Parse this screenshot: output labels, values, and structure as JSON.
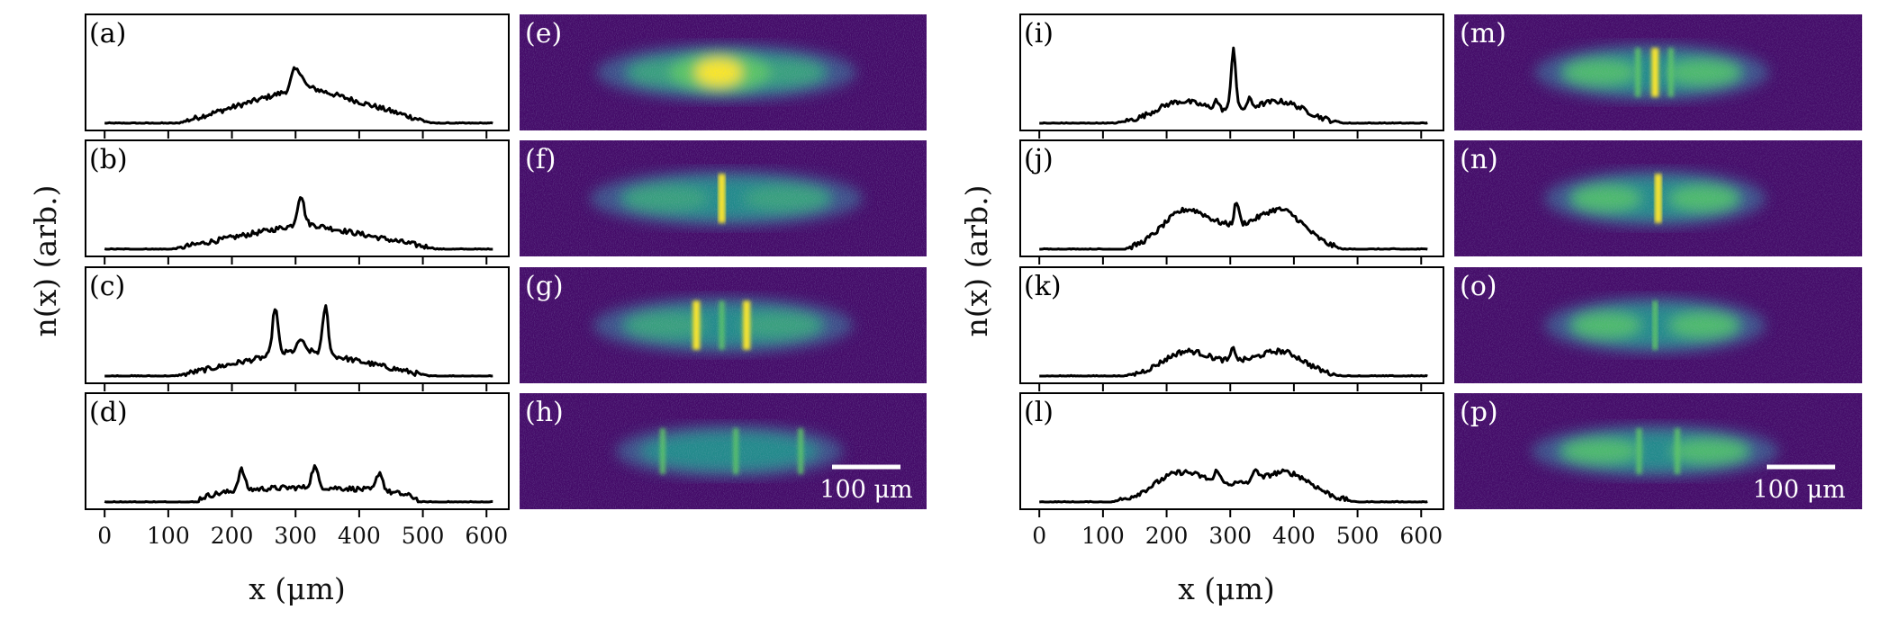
{
  "figure": {
    "ylabel": "n(x) (arb.)",
    "xlabel": "x (μm)",
    "scale_bar_label": "100 μm",
    "colors": {
      "trace": "#000000",
      "image_background": "#440a68",
      "image_low": "#3b528b",
      "image_mid": "#21918c",
      "image_high": "#5ec962",
      "image_peak": "#fde725"
    }
  },
  "chart_data": [
    {
      "type": "line",
      "group": "left",
      "xticks": [
        0,
        100,
        200,
        300,
        400,
        500,
        600
      ],
      "xlim": [
        -30,
        635
      ],
      "xlabel": "x (μm)",
      "ylabel": "n(x) (arb.)",
      "panels": [
        {
          "label": "(a)",
          "image_label": "(e)",
          "center": 315,
          "halfwidth": 200,
          "base_height": 0.36,
          "shape": "triangle",
          "peaks": [
            {
              "x": 298,
              "height": 0.18,
              "width": 7
            },
            {
              "x": 308,
              "height": 0.12,
              "width": 6
            }
          ],
          "image_blob": "central"
        },
        {
          "label": "(b)",
          "image_label": "(f)",
          "center": 315,
          "halfwidth": 210,
          "base_height": 0.25,
          "shape": "triangle",
          "peaks": [
            {
              "x": 308,
              "height": 0.28,
              "width": 7
            }
          ],
          "image_blob": "none"
        },
        {
          "label": "(c)",
          "image_label": "(g)",
          "center": 310,
          "halfwidth": 200,
          "base_height": 0.26,
          "shape": "triangle",
          "peaks": [
            {
              "x": 268,
              "height": 0.46,
              "width": 6
            },
            {
              "x": 308,
              "height": 0.1,
              "width": 6
            },
            {
              "x": 347,
              "height": 0.46,
              "width": 6
            }
          ],
          "image_blob": "none"
        },
        {
          "label": "(d)",
          "image_label": "(h)",
          "center": 320,
          "halfwidth": 175,
          "base_height": 0.14,
          "shape": "flat",
          "peaks": [
            {
              "x": 215,
              "height": 0.2,
              "width": 7
            },
            {
              "x": 330,
              "height": 0.2,
              "width": 7
            },
            {
              "x": 432,
              "height": 0.18,
              "width": 7
            }
          ],
          "image_blob": "none"
        }
      ]
    },
    {
      "type": "line",
      "group": "right",
      "xticks": [
        0,
        100,
        200,
        300,
        400,
        500,
        600
      ],
      "xlim": [
        -30,
        635
      ],
      "xlabel": "x (μm)",
      "ylabel": "n(x) (arb.)",
      "panels": [
        {
          "label": "(i)",
          "image_label": "(m)",
          "center": 300,
          "halfwidth": 180,
          "base_height": 0.22,
          "shape": "double",
          "peaks": [
            {
              "x": 305,
              "height": 0.6,
              "width": 5
            },
            {
              "x": 278,
              "height": 0.08,
              "width": 5
            },
            {
              "x": 330,
              "height": 0.08,
              "width": 5
            }
          ],
          "image_blob": "none"
        },
        {
          "label": "(j)",
          "image_label": "(n)",
          "center": 305,
          "halfwidth": 170,
          "base_height": 0.4,
          "shape": "double",
          "peaks": [
            {
              "x": 310,
              "height": 0.22,
              "width": 5
            }
          ],
          "image_blob": "none"
        },
        {
          "label": "(k)",
          "image_label": "(o)",
          "center": 305,
          "halfwidth": 170,
          "base_height": 0.25,
          "shape": "double",
          "peaks": [
            {
              "x": 305,
              "height": 0.12,
              "width": 5
            }
          ],
          "image_blob": "none"
        },
        {
          "label": "(l)",
          "image_label": "(p)",
          "center": 305,
          "halfwidth": 190,
          "base_height": 0.3,
          "shape": "double",
          "peaks": [
            {
              "x": 280,
              "height": 0.12,
              "width": 5
            },
            {
              "x": 340,
              "height": 0.12,
              "width": 5
            }
          ],
          "image_blob": "none"
        }
      ]
    }
  ]
}
